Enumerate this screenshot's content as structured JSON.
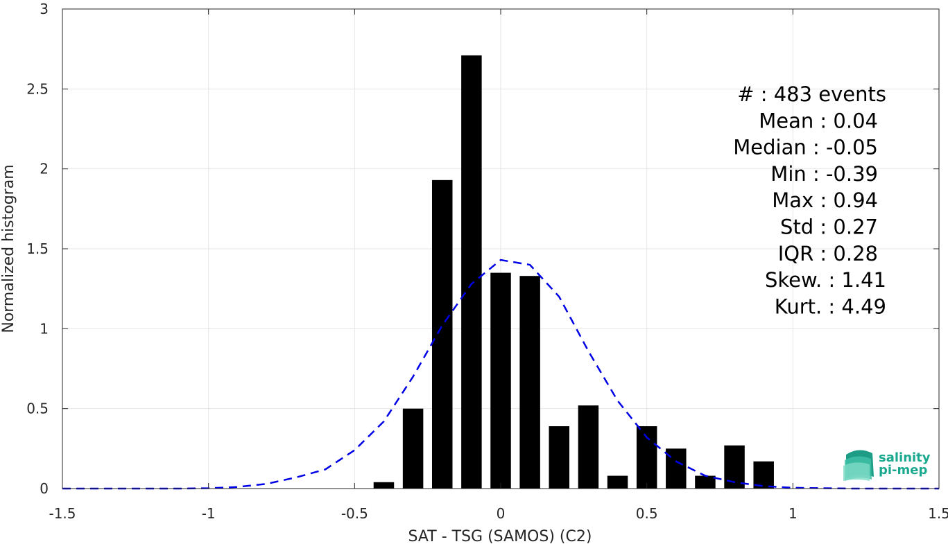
{
  "chart_data": {
    "type": "bar",
    "xlabel": "SAT - TSG (SAMOS) (C2)",
    "ylabel": "Normalized histogram",
    "xlim": [
      -1.5,
      1.5
    ],
    "ylim": [
      0,
      3
    ],
    "xticks": [
      "-1.5",
      "-1",
      "-0.5",
      "0",
      "0.5",
      "1",
      "1.5"
    ],
    "yticks": [
      "0",
      "0.5",
      "1",
      "1.5",
      "2",
      "2.5",
      "3"
    ],
    "grid": true,
    "bar_color": "#000000",
    "bar_width": 0.07,
    "bars": {
      "x": [
        -0.4,
        -0.3,
        -0.2,
        -0.1,
        0.0,
        0.1,
        0.2,
        0.3,
        0.4,
        0.5,
        0.6,
        0.7,
        0.8,
        0.9
      ],
      "values": [
        0.04,
        0.5,
        1.93,
        2.71,
        1.35,
        1.33,
        0.39,
        0.52,
        0.08,
        0.39,
        0.25,
        0.08,
        0.27,
        0.17
      ]
    },
    "fit_line": {
      "color": "#0000e6",
      "style": "dashed",
      "x": [
        -1.5,
        -1.4,
        -1.3,
        -1.2,
        -1.1,
        -1.0,
        -0.9,
        -0.8,
        -0.7,
        -0.6,
        -0.5,
        -0.4,
        -0.3,
        -0.2,
        -0.1,
        0.0,
        0.1,
        0.2,
        0.3,
        0.4,
        0.5,
        0.6,
        0.7,
        0.8,
        0.9,
        1.0,
        1.1,
        1.2,
        1.3,
        1.4,
        1.5
      ],
      "y": [
        0,
        0,
        0,
        0,
        0,
        0.002,
        0.01,
        0.03,
        0.07,
        0.12,
        0.24,
        0.42,
        0.7,
        1.02,
        1.28,
        1.43,
        1.4,
        1.2,
        0.86,
        0.55,
        0.32,
        0.17,
        0.08,
        0.04,
        0.015,
        0.005,
        0.002,
        0,
        0,
        0,
        0
      ]
    },
    "stats": [
      "#  : 483 events",
      "Mean : 0.04",
      "Median : -0.05",
      "Min : -0.39",
      "Max : 0.94",
      "Std : 0.27",
      "IQR : 0.28",
      "Skew. : 1.41",
      "Kurt. : 4.49"
    ]
  },
  "logo": {
    "line1": "salinity",
    "line2": "pi-mep",
    "color": "#1aa88e"
  }
}
